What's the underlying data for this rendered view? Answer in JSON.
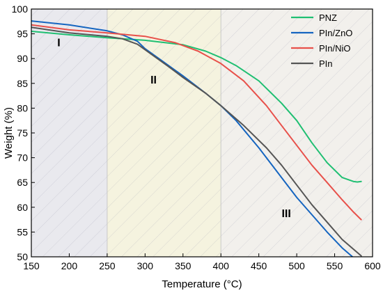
{
  "chart_data": {
    "type": "line",
    "xlabel": "Temperature (°C)",
    "ylabel": "Weight (%)",
    "xlim": [
      150,
      600
    ],
    "ylim": [
      50,
      100
    ],
    "xticks": [
      150,
      200,
      250,
      300,
      350,
      400,
      450,
      500,
      550,
      600
    ],
    "yticks": [
      50,
      55,
      60,
      65,
      70,
      75,
      80,
      85,
      90,
      95,
      100
    ],
    "grid": false,
    "legend_position": "top-right",
    "regions": [
      {
        "label": "I",
        "x_start": 150,
        "x_end": 250,
        "label_x": 200,
        "label_y": 92.5,
        "fill": "#e9e9ee"
      },
      {
        "label": "II",
        "x_start": 250,
        "x_end": 400,
        "label_x": 325,
        "label_y": 85,
        "fill": "#f5f3df"
      },
      {
        "label": "III",
        "x_start": 400,
        "x_end": 600,
        "label_x": 500,
        "label_y": 58,
        "fill": "#f2f0ec"
      }
    ],
    "series": [
      {
        "name": "PNZ",
        "color": "#1fbf72",
        "x": [
          150,
          200,
          250,
          300,
          350,
          380,
          400,
          420,
          450,
          480,
          500,
          520,
          540,
          560,
          575,
          580,
          585
        ],
        "y": [
          95.5,
          94.8,
          94.2,
          93.7,
          92.8,
          91.5,
          90.2,
          88.6,
          85.5,
          81.0,
          77.5,
          73.0,
          69.0,
          66.0,
          65.2,
          65.1,
          65.2
        ]
      },
      {
        "name": "PIn/ZnO",
        "color": "#1565c0",
        "x": [
          150,
          200,
          250,
          270,
          290,
          300,
          320,
          350,
          380,
          400,
          420,
          450,
          480,
          500,
          520,
          540,
          560,
          575,
          580
        ],
        "y": [
          97.6,
          96.8,
          95.6,
          94.8,
          93.5,
          92.0,
          89.8,
          86.5,
          83.0,
          80.5,
          77.5,
          72.0,
          66.0,
          62.0,
          58.5,
          55.0,
          51.8,
          49.8,
          49.5
        ]
      },
      {
        "name": "PIn/NiO",
        "color": "#e8504a",
        "x": [
          150,
          200,
          250,
          300,
          340,
          370,
          400,
          430,
          460,
          480,
          500,
          520,
          540,
          560,
          575,
          585
        ],
        "y": [
          96.8,
          95.8,
          95.2,
          94.5,
          93.2,
          91.5,
          89.0,
          85.5,
          80.5,
          76.5,
          72.5,
          68.5,
          65.0,
          61.5,
          59.0,
          57.5
        ]
      },
      {
        "name": "PIn",
        "color": "#555555",
        "x": [
          150,
          200,
          250,
          270,
          290,
          300,
          330,
          350,
          380,
          400,
          430,
          460,
          480,
          500,
          520,
          540,
          560,
          575,
          585
        ],
        "y": [
          96.3,
          95.2,
          94.5,
          94.0,
          92.9,
          91.8,
          88.5,
          86.2,
          83.0,
          80.5,
          76.5,
          72.0,
          68.5,
          64.5,
          60.5,
          57.0,
          53.5,
          51.5,
          50.2
        ]
      }
    ]
  }
}
